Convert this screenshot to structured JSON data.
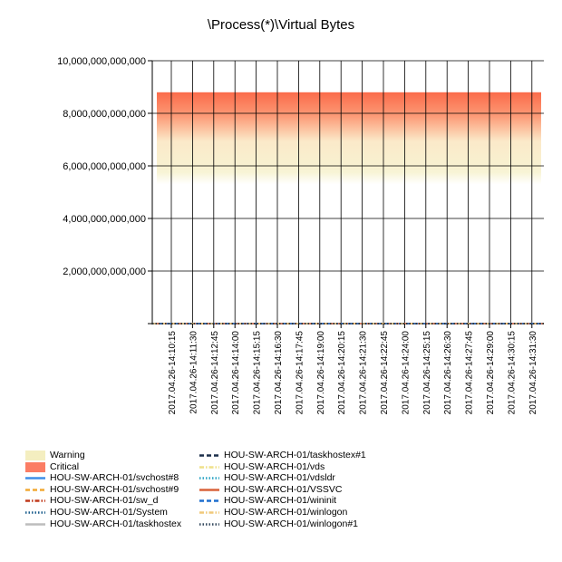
{
  "chart_data": {
    "type": "line",
    "title": "\\Process(*)\\Virtual Bytes",
    "xlabel": "",
    "ylabel": "",
    "ylim": [
      0,
      10000000000000
    ],
    "y_ticks": [
      {
        "value": 0,
        "label": ""
      },
      {
        "value": 2000000000000,
        "label": "2,000,000,000,000"
      },
      {
        "value": 4000000000000,
        "label": "4,000,000,000,000"
      },
      {
        "value": 6000000000000,
        "label": "6,000,000,000,000"
      },
      {
        "value": 8000000000000,
        "label": "8,000,000,000,000"
      },
      {
        "value": 10000000000000,
        "label": "10,000,000,000,000"
      }
    ],
    "categories": [
      "2017.04.26-14:10:15",
      "2017.04.26-14:11:30",
      "2017.04.26-14:12:45",
      "2017.04.26-14:14:00",
      "2017.04.26-14:15:15",
      "2017.04.26-14:16:30",
      "2017.04.26-14:17:45",
      "2017.04.26-14:19:00",
      "2017.04.26-14:20:15",
      "2017.04.26-14:21:30",
      "2017.04.26-14:22:45",
      "2017.04.26-14:24:00",
      "2017.04.26-14:25:15",
      "2017.04.26-14:26:30",
      "2017.04.26-14:27:45",
      "2017.04.26-14:29:00",
      "2017.04.26-14:30:15",
      "2017.04.26-14:31:30"
    ],
    "thresholds": {
      "warning": {
        "from": 5800000000000,
        "to": 7000000000000,
        "color": "#f7f3d2"
      },
      "critical": {
        "from": 7000000000000,
        "to": 8800000000000,
        "color": "#fb6b4a"
      }
    },
    "series": [
      {
        "name": "HOU-SW-ARCH-01/svchost#8",
        "value": 0,
        "color": "#3f8fe8",
        "dash": "solid"
      },
      {
        "name": "HOU-SW-ARCH-01/svchost#9",
        "value": 0,
        "color": "#f2a933",
        "dash": "dash"
      },
      {
        "name": "HOU-SW-ARCH-01/sw_d",
        "value": 0,
        "color": "#c0391b",
        "dash": "dashdot"
      },
      {
        "name": "HOU-SW-ARCH-01/System",
        "value": 0,
        "color": "#1a5d8c",
        "dash": "dot"
      },
      {
        "name": "HOU-SW-ARCH-01/taskhostex",
        "value": 0,
        "color": "#bdbdbd",
        "dash": "solid"
      },
      {
        "name": "HOU-SW-ARCH-01/taskhostex#1",
        "value": 0,
        "color": "#1c2f4a",
        "dash": "dash"
      },
      {
        "name": "HOU-SW-ARCH-01/vds",
        "value": 0,
        "color": "#efe08a",
        "dash": "dashdot"
      },
      {
        "name": "HOU-SW-ARCH-01/vdsldr",
        "value": 0,
        "color": "#2aa3c4",
        "dash": "dot"
      },
      {
        "name": "HOU-SW-ARCH-01/VSSVC",
        "value": 0,
        "color": "#d9623a",
        "dash": "solid"
      },
      {
        "name": "HOU-SW-ARCH-01/wininit",
        "value": 0,
        "color": "#1f6fcf",
        "dash": "dash"
      },
      {
        "name": "HOU-SW-ARCH-01/winlogon",
        "value": 0,
        "color": "#f0c97a",
        "dash": "dashdot"
      },
      {
        "name": "HOU-SW-ARCH-01/winlogon#1",
        "value": 0,
        "color": "#34495e",
        "dash": "dot"
      }
    ],
    "legend": {
      "placement": "bottom",
      "entries": [
        {
          "label": "Warning",
          "kind": "warning"
        },
        {
          "label": "Critical",
          "kind": "critical"
        },
        {
          "label": "HOU-SW-ARCH-01/svchost#8",
          "kind": "series",
          "ref": 0
        },
        {
          "label": "HOU-SW-ARCH-01/svchost#9",
          "kind": "series",
          "ref": 1
        },
        {
          "label": "HOU-SW-ARCH-01/sw_d",
          "kind": "series",
          "ref": 2
        },
        {
          "label": "HOU-SW-ARCH-01/System",
          "kind": "series",
          "ref": 3
        },
        {
          "label": "HOU-SW-ARCH-01/taskhostex",
          "kind": "series",
          "ref": 4
        },
        {
          "label": "HOU-SW-ARCH-01/taskhostex#1",
          "kind": "series",
          "ref": 5
        },
        {
          "label": "HOU-SW-ARCH-01/vds",
          "kind": "series",
          "ref": 6
        },
        {
          "label": "HOU-SW-ARCH-01/vdsldr",
          "kind": "series",
          "ref": 7
        },
        {
          "label": "HOU-SW-ARCH-01/VSSVC",
          "kind": "series",
          "ref": 8
        },
        {
          "label": "HOU-SW-ARCH-01/wininit",
          "kind": "series",
          "ref": 9
        },
        {
          "label": "HOU-SW-ARCH-01/winlogon",
          "kind": "series",
          "ref": 10
        },
        {
          "label": "HOU-SW-ARCH-01/winlogon#1",
          "kind": "series",
          "ref": 11
        }
      ]
    },
    "grid": true
  }
}
